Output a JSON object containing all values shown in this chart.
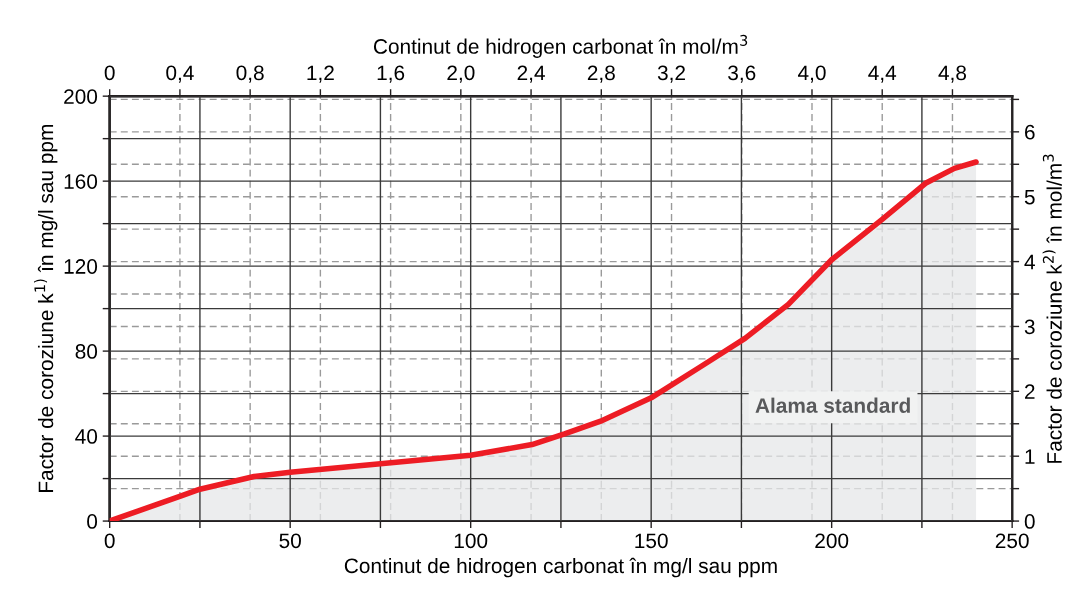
{
  "chart_data": {
    "type": "area",
    "x": [
      0,
      20,
      25,
      40,
      50,
      75,
      100,
      117,
      126,
      136,
      150,
      164,
      176,
      188,
      200,
      214,
      226,
      234,
      240
    ],
    "series": [
      {
        "color": "#ed1c24",
        "values": [
          0,
          12,
          15,
          21,
          23,
          27,
          31,
          36,
          41,
          47,
          58,
          73,
          86,
          102,
          123,
          142,
          159,
          166,
          169
        ]
      }
    ],
    "xlabel": "Continut de hidrogen carbonat în mg/l sau ppm",
    "x2label": "Continut de hidrogen carbonat în mol/m$^{3}$",
    "ylabel": "Factor de coroziune k$^{1)}$ în mg/l sau ppm",
    "y2label": "Factor de coroziune k$^{2)}$ în mol/m$^{3}$",
    "annotations": [
      "Alama standard"
    ],
    "xlim": [
      0,
      250
    ],
    "xticks": [
      0,
      {
        "value": 25,
        "label": null
      },
      50,
      {
        "value": 75,
        "label": null
      },
      100,
      {
        "value": 125,
        "label": null
      },
      150,
      {
        "value": 175,
        "label": null
      },
      200,
      {
        "value": 225,
        "label": null
      },
      250
    ],
    "ylim": [
      0,
      200
    ],
    "yticks": [
      0,
      {
        "value": 20,
        "label": null
      },
      40,
      {
        "value": 60,
        "label": null
      },
      80,
      {
        "value": 100,
        "label": null
      },
      120,
      {
        "value": 140,
        "label": null
      },
      160,
      {
        "value": 180,
        "label": null
      },
      200
    ],
    "x2lim": [
      0,
      5.14
    ],
    "x2ticks": [
      0,
      {
        "value": 0.4,
        "label": "0,4"
      },
      {
        "value": 0.8,
        "label": "0,8"
      },
      {
        "value": 1.2,
        "label": "1,2"
      },
      {
        "value": 1.6,
        "label": "1,6"
      },
      {
        "value": 2.0,
        "label": "2,0"
      },
      {
        "value": 2.4,
        "label": "2,4"
      },
      {
        "value": 2.8,
        "label": "2,8"
      },
      {
        "value": 3.2,
        "label": "3,2"
      },
      {
        "value": 3.6,
        "label": "3,6"
      },
      {
        "value": 4.0,
        "label": "4,0"
      },
      {
        "value": 4.4,
        "label": "4,4"
      },
      {
        "value": 4.8,
        "label": "4,8"
      }
    ],
    "y2lim": [
      0,
      6.55
    ],
    "y2ticks": [
      0,
      {
        "value": 0.5,
        "label": null
      },
      1,
      {
        "value": 1.5,
        "label": null
      },
      2,
      {
        "value": 2.5,
        "label": null
      },
      3,
      {
        "value": 3.5,
        "label": null
      },
      4,
      {
        "value": 4.5,
        "label": null
      },
      5,
      {
        "value": 5.5,
        "label": null
      },
      6,
      {
        "value": 6.5,
        "label": null
      }
    ],
    "grid": true
  }
}
